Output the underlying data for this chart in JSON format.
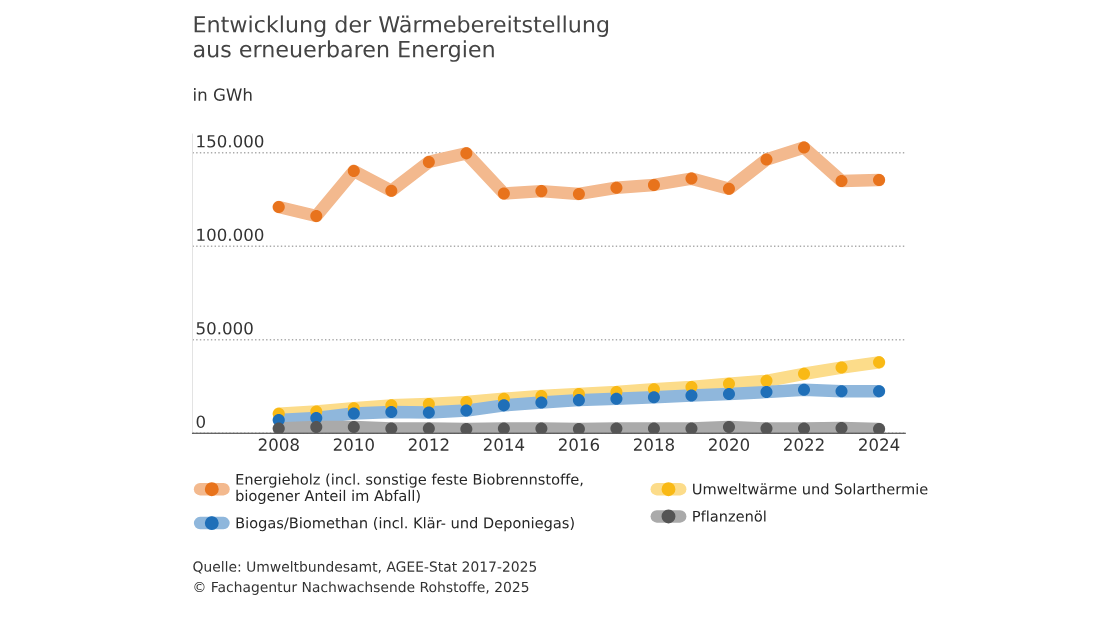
{
  "chart_data": {
    "type": "line",
    "title": "Entwicklung der Wärmebereitstellung\naus erneuerbaren Energien",
    "ylabel": "in GWh",
    "x": [
      2008,
      2009,
      2010,
      2011,
      2012,
      2013,
      2014,
      2015,
      2016,
      2017,
      2018,
      2019,
      2020,
      2021,
      2022,
      2023,
      2024
    ],
    "series": [
      {
        "name": "Energieholz (incl. sonstige feste Biobrennstoffe,\nbiogener Anteil im Abfall)",
        "color": "#e8731c",
        "values": [
          121000,
          116200,
          140300,
          129700,
          145100,
          149700,
          128200,
          129500,
          128000,
          131300,
          132800,
          136200,
          130800,
          146400,
          152800,
          134900,
          135400
        ]
      },
      {
        "name": "Umweltwärme und Solarthermie",
        "color": "#f9b915",
        "values": [
          10400,
          11600,
          13400,
          14900,
          15650,
          16700,
          18400,
          19900,
          21000,
          22000,
          23500,
          24700,
          26500,
          28000,
          31800,
          35100,
          37900
        ]
      },
      {
        "name": "Biogas/Biomethan (incl. Klär- und Deponiegas)",
        "color": "#1f6fb8",
        "values": [
          7100,
          8100,
          10600,
          11400,
          11100,
          12100,
          14900,
          16400,
          17700,
          18400,
          19200,
          20200,
          21000,
          22000,
          23200,
          22500,
          22500
        ]
      },
      {
        "name": "Pflanzenöl",
        "color": "#555555",
        "values": [
          2500,
          3300,
          3300,
          2500,
          2500,
          2300,
          2500,
          2500,
          2300,
          2500,
          2500,
          2500,
          3300,
          2500,
          2500,
          2800,
          2300
        ]
      }
    ],
    "xlim": [
      2005.7,
      2024.7
    ],
    "xticks": [
      2008,
      2010,
      2012,
      2014,
      2016,
      2018,
      2020,
      2022,
      2024
    ],
    "ylim": [
      0,
      160000
    ],
    "yticks": [
      0,
      {
        "value": 50000,
        "label": "50.000"
      },
      {
        "value": 100000,
        "label": "100.000"
      },
      {
        "value": 150000,
        "label": "150.000"
      }
    ],
    "grid": "y",
    "legend": "bottom",
    "marker": "circle",
    "line_style": "solid",
    "annotations": [
      "Quelle: Umweltbundesamt, AGEE-Stat 2017-2025",
      "© Fachagentur Nachwachsende Rohstoffe, 2025"
    ]
  }
}
